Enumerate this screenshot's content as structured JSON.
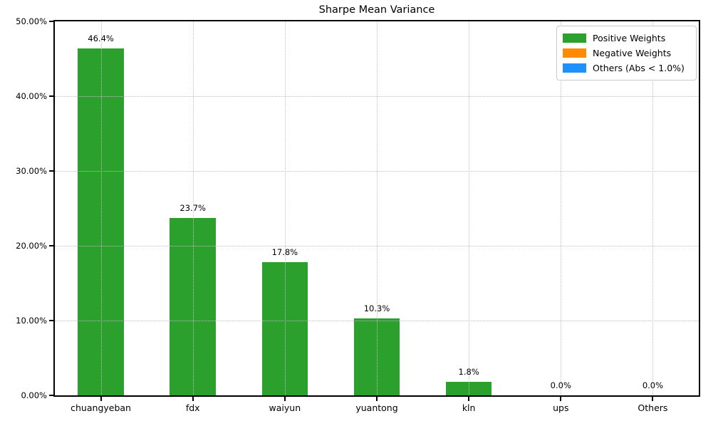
{
  "chart_data": {
    "type": "bar",
    "title": "Sharpe Mean Variance",
    "categories": [
      "chuangyeban",
      "fdx",
      "waiyun",
      "yuantong",
      "kln",
      "ups",
      "Others"
    ],
    "values": [
      46.4,
      23.7,
      17.8,
      10.3,
      1.8,
      0.0,
      0.0
    ],
    "bar_labels": [
      "46.4%",
      "23.7%",
      "17.8%",
      "10.3%",
      "1.8%",
      "0.0%",
      "0.0%"
    ],
    "bar_series": [
      "positive",
      "positive",
      "positive",
      "positive",
      "positive",
      "positive",
      "positive"
    ],
    "xlabel": "",
    "ylabel": "",
    "ylim": [
      0,
      50
    ],
    "yticks": [
      0,
      10,
      20,
      30,
      40,
      50
    ],
    "ytick_labels": [
      "0.00%",
      "10.00%",
      "20.00%",
      "30.00%",
      "40.00%",
      "50.00%"
    ],
    "grid": "dotted",
    "grid_color": "#bdbdbd",
    "legend": {
      "position": "top-right",
      "entries": [
        {
          "label": "Positive Weights",
          "color": "#2ca02c"
        },
        {
          "label": "Negative Weights",
          "color": "#ff8c00"
        },
        {
          "label": "Others (Abs < 1.0%)",
          "color": "#1e90ff"
        }
      ]
    },
    "series_colors": {
      "positive": "#2ca02c",
      "negative": "#ff8c00",
      "others": "#1e90ff"
    }
  }
}
